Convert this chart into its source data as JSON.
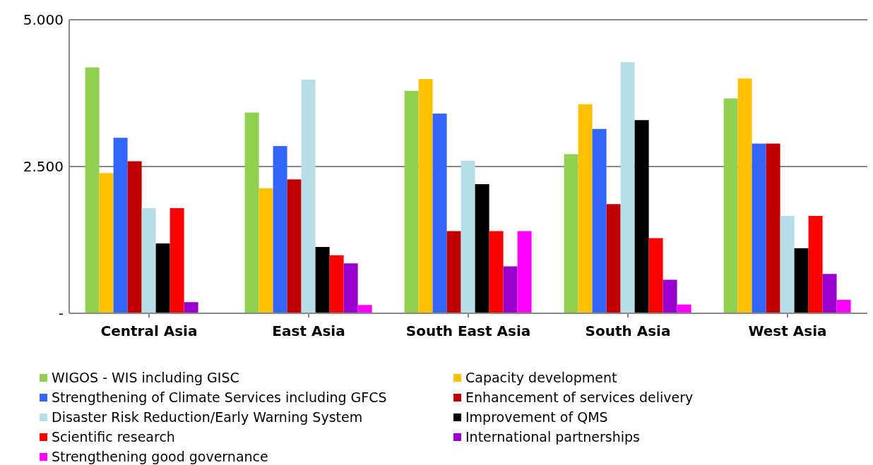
{
  "chart_data": {
    "type": "bar",
    "categories": [
      "Central Asia",
      "East Asia",
      "South East Asia",
      "South Asia",
      "West Asia"
    ],
    "series": [
      {
        "name": "WIGOS - WIS including GISC",
        "color": "#92d050",
        "values": [
          4.19,
          3.42,
          3.79,
          2.71,
          3.66
        ]
      },
      {
        "name": "Capacity development",
        "color": "#ffc000",
        "values": [
          2.39,
          2.13,
          3.99,
          3.56,
          4.0
        ]
      },
      {
        "name": "Strengthening of Climate Services including GFCS",
        "color": "#3366ff",
        "values": [
          2.99,
          2.85,
          3.4,
          3.14,
          2.89
        ]
      },
      {
        "name": "Enhancement of services delivery",
        "color": "#c00000",
        "values": [
          2.59,
          2.28,
          1.4,
          1.86,
          2.89
        ]
      },
      {
        "name": "Disaster Risk Reduction/Early Warning System",
        "color": "#b7dde8",
        "values": [
          1.79,
          3.98,
          2.6,
          4.28,
          1.66
        ]
      },
      {
        "name": "Improvement of QMS",
        "color": "#000000",
        "values": [
          1.19,
          1.13,
          2.2,
          3.29,
          1.11
        ]
      },
      {
        "name": "Scientific research",
        "color": "#ff0000",
        "values": [
          1.79,
          0.99,
          1.4,
          1.28,
          1.66
        ]
      },
      {
        "name": "International partnerships",
        "color": "#9900cc",
        "values": [
          0.19,
          0.85,
          0.8,
          0.57,
          0.67
        ]
      },
      {
        "name": "Strengthening good governance",
        "color": "#ff00ff",
        "values": [
          0,
          0.14,
          1.4,
          0.15,
          0.23
        ]
      }
    ],
    "ylim": [
      0,
      5
    ],
    "yticks": [
      {
        "value": 0,
        "label": "-"
      },
      {
        "value": 2.5,
        "label": "2.500"
      },
      {
        "value": 5,
        "label": "5.000"
      }
    ],
    "grid": "y",
    "legend": "bottom"
  }
}
